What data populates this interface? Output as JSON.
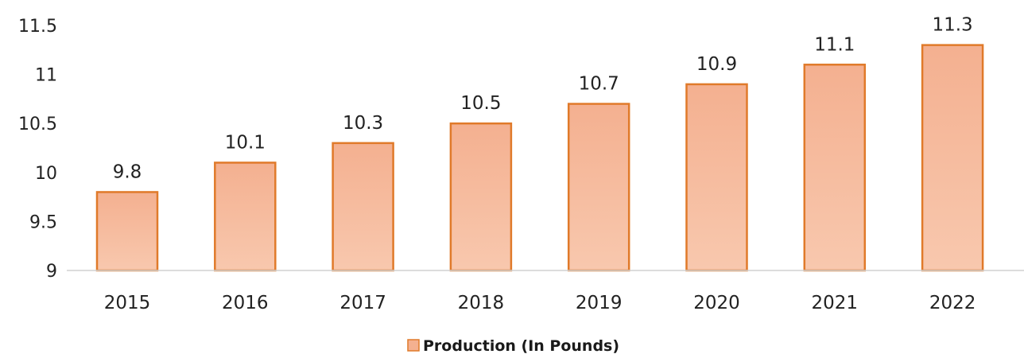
{
  "chart_data": {
    "type": "bar",
    "categories": [
      "2015",
      "2016",
      "2017",
      "2018",
      "2019",
      "2020",
      "2021",
      "2022"
    ],
    "series": [
      {
        "name": "Production (In Pounds)",
        "values": [
          9.8,
          10.1,
          10.3,
          10.5,
          10.7,
          10.9,
          11.1,
          11.3
        ]
      }
    ],
    "data_labels": [
      "9.8",
      "10.1",
      "10.3",
      "10.5",
      "10.7",
      "10.9",
      "11.1",
      "11.3"
    ],
    "ylim": [
      9,
      11.5
    ],
    "yticks": [
      9,
      9.5,
      10,
      10.5,
      11,
      11.5
    ],
    "ytick_labels": [
      "9",
      "9.5",
      "10",
      "10.5",
      "11",
      "11.5"
    ],
    "grid": false,
    "legend_position": "bottom",
    "colors": {
      "bar_fill_top": "#f4b090",
      "bar_fill_bottom": "#f8c8ae",
      "bar_stroke": "#e07a2a",
      "axis": "#d0d0d0"
    }
  }
}
